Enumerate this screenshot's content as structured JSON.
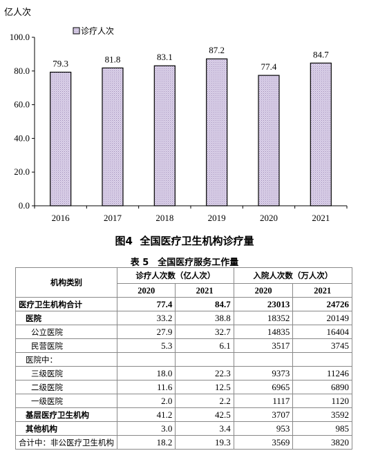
{
  "chart_data": {
    "type": "bar",
    "ylabel": "亿人次",
    "categories": [
      "2016",
      "2017",
      "2018",
      "2019",
      "2020",
      "2021"
    ],
    "series": [
      {
        "name": "诊疗人次",
        "values": [
          79.3,
          81.8,
          83.1,
          87.2,
          77.4,
          84.7
        ]
      }
    ],
    "value_labels": [
      "79.3",
      "81.8",
      "83.1",
      "87.2",
      "77.4",
      "84.7"
    ],
    "ylim": [
      0,
      100
    ],
    "yticks": [
      "0.0",
      "20.0",
      "40.0",
      "60.0",
      "80.0",
      "100.0"
    ],
    "legend": "top-left",
    "grid": false,
    "bar_fill": "#d8cfe6",
    "bar_stroke": "#000000"
  },
  "figure_caption": {
    "prefix": "图",
    "number": "4",
    "title": "全国医疗卫生机构诊疗量"
  },
  "table": {
    "caption": "表 5　全国医疗服务工作量",
    "col_category": "机构类别",
    "group_visits": "诊疗人次数（亿人次）",
    "group_admissions": "入院人次数（万人次）",
    "years": [
      "2020",
      "2021",
      "2020",
      "2021"
    ],
    "rows": [
      {
        "label": "医疗卫生机构合计",
        "values": [
          "77.4",
          "84.7",
          "23013",
          "24726"
        ]
      },
      {
        "label": "医院",
        "values": [
          "33.2",
          "38.8",
          "18352",
          "20149"
        ]
      },
      {
        "label": "公立医院",
        "values": [
          "27.9",
          "32.7",
          "14835",
          "16404"
        ]
      },
      {
        "label": "民营医院",
        "values": [
          "5.3",
          "6.1",
          "3517",
          "3745"
        ]
      },
      {
        "label": "医院中：",
        "values": [
          "",
          "",
          "",
          ""
        ]
      },
      {
        "label": "三级医院",
        "values": [
          "18.0",
          "22.3",
          "9373",
          "11246"
        ]
      },
      {
        "label": "二级医院",
        "values": [
          "11.6",
          "12.5",
          "6965",
          "6890"
        ]
      },
      {
        "label": "一级医院",
        "values": [
          "2.0",
          "2.2",
          "1117",
          "1120"
        ]
      },
      {
        "label": "基层医疗卫生机构",
        "values": [
          "41.2",
          "42.5",
          "3707",
          "3592"
        ]
      },
      {
        "label": "其他机构",
        "values": [
          "3.0",
          "3.4",
          "953",
          "985"
        ]
      },
      {
        "label": "合计中：非公医疗卫生机构",
        "values": [
          "18.2",
          "19.3",
          "3569",
          "3820"
        ]
      }
    ]
  }
}
